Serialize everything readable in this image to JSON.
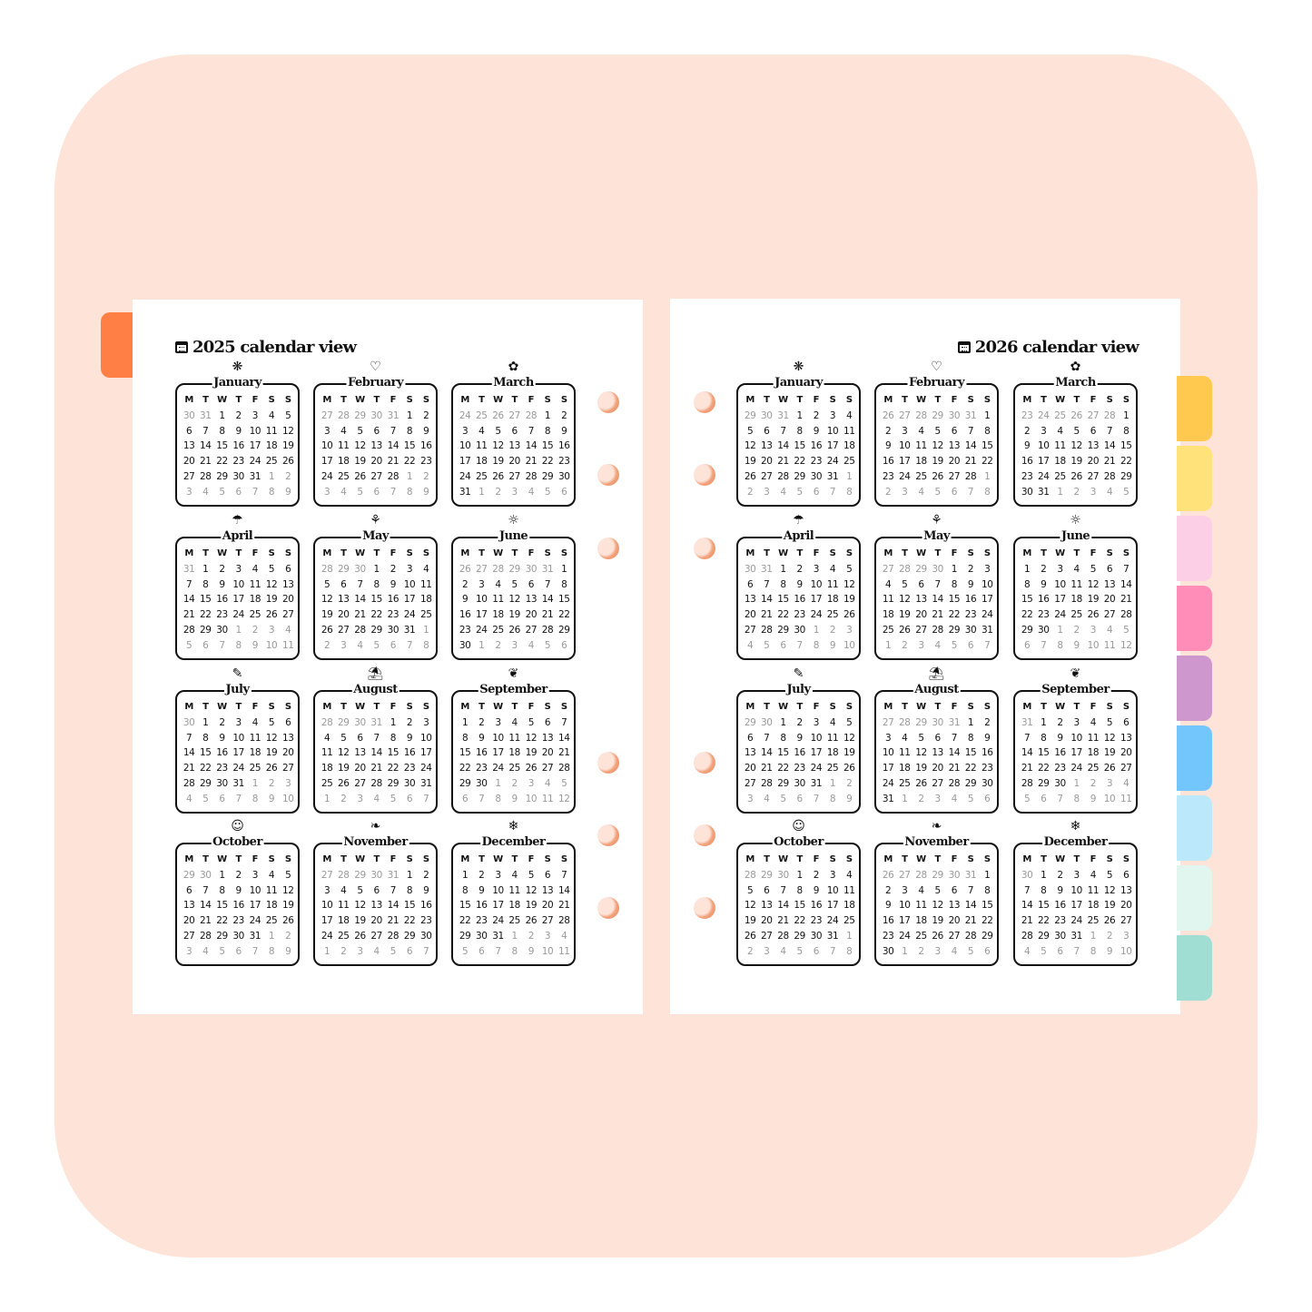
{
  "weekdays": [
    "M",
    "T",
    "W",
    "T",
    "F",
    "S",
    "S"
  ],
  "colors": {
    "background": "#FDE3D8",
    "left_tab": "#FF7F45",
    "side_tabs": [
      "#FFC84E",
      "#FFE27A",
      "#FCCFE6",
      "#FF8DB8",
      "#CE98CE",
      "#72C6FB",
      "#BCE8FC",
      "#E2F6F0",
      "#A0DED4"
    ]
  },
  "month_icons": [
    "firework-icon",
    "heart-hand-icon",
    "flower-icon",
    "umbrella-icon",
    "tulip-icon",
    "sun-icon",
    "popsicle-icon",
    "beach-umbrella-icon",
    "maple-leaf-icon",
    "pumpkin-icon",
    "leaf-icon",
    "snowflake-icon"
  ],
  "month_glyphs": [
    "❋",
    "♡",
    "✿",
    "☂",
    "⚘",
    "☼",
    "✎",
    "⛱",
    "❦",
    "☺",
    "❧",
    "❄"
  ],
  "pages": [
    {
      "title": "2025 calendar view",
      "months": [
        {
          "name": "January",
          "days": "30 31 1 2 3 4 5 6 7 8 9 10 11 12 13 14 15 16 17 18 19 20 21 22 23 24 25 26 27 28 29 30 31 1 2 3 4 5 6 7 8 9"
        },
        {
          "name": "February",
          "days": "27 28 29 30 31 1 2 3 4 5 6 7 8 9 10 11 12 13 14 15 16 17 18 19 20 21 22 23 24 25 26 27 28 1 2 3 4 5 6 7 8 9"
        },
        {
          "name": "March",
          "days": "24 25 26 27 28 1 2 3 4 5 6 7 8 9 10 11 12 13 14 15 16 17 18 19 20 21 22 23 24 25 26 27 28 29 30 31 1 2 3 4 5 6"
        },
        {
          "name": "April",
          "days": "31 1 2 3 4 5 6 7 8 9 10 11 12 13 14 15 16 17 18 19 20 21 22 23 24 25 26 27 28 29 30 1 2 3 4 5 6 7 8 9 10 11"
        },
        {
          "name": "May",
          "days": "28 29 30 1 2 3 4 5 6 7 8 9 10 11 12 13 14 15 16 17 18 19 20 21 22 23 24 25 26 27 28 29 30 31 1 2 3 4 5 6 7 8"
        },
        {
          "name": "June",
          "days": "26 27 28 29 30 31 1 2 3 4 5 6 7 8 9 10 11 12 13 14 15 16 17 18 19 20 21 22 23 24 25 26 27 28 29 30 1 2 3 4 5 6"
        },
        {
          "name": "July",
          "days": "30 1 2 3 4 5 6 7 8 9 10 11 12 13 14 15 16 17 18 19 20 21 22 23 24 25 26 27 28 29 30 31 1 2 3 4 5 6 7 8 9 10"
        },
        {
          "name": "August",
          "days": "28 29 30 31 1 2 3 4 5 6 7 8 9 10 11 12 13 14 15 16 17 18 19 20 21 22 23 24 25 26 27 28 29 30 31 1 2 3 4 5 6 7"
        },
        {
          "name": "September",
          "days": "1 2 3 4 5 6 7 8 9 10 11 12 13 14 15 16 17 18 19 20 21 22 23 24 25 26 27 28 29 30 1 2 3 4 5 6 7 8 9 10 11 12"
        },
        {
          "name": "October",
          "days": "29 30 1 2 3 4 5 6 7 8 9 10 11 12 13 14 15 16 17 18 19 20 21 22 23 24 25 26 27 28 29 30 31 1 2 3 4 5 6 7 8 9"
        },
        {
          "name": "November",
          "days": "27 28 29 30 31 1 2 3 4 5 6 7 8 9 10 11 12 13 14 15 16 17 18 19 20 21 22 23 24 25 26 27 28 29 30 1 2 3 4 5 6 7"
        },
        {
          "name": "December",
          "days": "1 2 3 4 5 6 7 8 9 10 11 12 13 14 15 16 17 18 19 20 21 22 23 24 25 26 27 28 29 30 31 1 2 3 4 5 6 7 8 9 10 11"
        }
      ]
    },
    {
      "title": "2026 calendar view",
      "months": [
        {
          "name": "January",
          "days": "29 30 31 1 2 3 4 5 6 7 8 9 10 11 12 13 14 15 16 17 18 19 20 21 22 23 24 25 26 27 28 29 30 31 1 2 3 4 5 6 7 8"
        },
        {
          "name": "February",
          "days": "26 27 28 29 30 31 1 2 3 4 5 6 7 8 9 10 11 12 13 14 15 16 17 18 19 20 21 22 23 24 25 26 27 28 1 2 3 4 5 6 7 8"
        },
        {
          "name": "March",
          "days": "23 24 25 26 27 28 1 2 3 4 5 6 7 8 9 10 11 12 13 14 15 16 17 18 19 20 21 22 23 24 25 26 27 28 29 30 31 1 2 3 4 5"
        },
        {
          "name": "April",
          "days": "30 31 1 2 3 4 5 6 7 8 9 10 11 12 13 14 15 16 17 18 19 20 21 22 23 24 25 26 27 28 29 30 1 2 3 4 5 6 7 8 9 10"
        },
        {
          "name": "May",
          "days": "27 28 29 30 1 2 3 4 5 6 7 8 9 10 11 12 13 14 15 16 17 18 19 20 21 22 23 24 25 26 27 28 29 30 31 1 2 3 4 5 6 7"
        },
        {
          "name": "June",
          "days": "1 2 3 4 5 6 7 8 9 10 11 12 13 14 15 16 17 18 19 20 21 22 23 24 25 26 27 28 29 30 1 2 3 4 5 6 7 8 9 10 11 12"
        },
        {
          "name": "July",
          "days": "29 30 1 2 3 4 5 6 7 8 9 10 11 12 13 14 15 16 17 18 19 20 21 22 23 24 25 26 27 28 29 30 31 1 2 3 4 5 6 7 8 9"
        },
        {
          "name": "August",
          "days": "27 28 29 30 31 1 2 3 4 5 6 7 8 9 10 11 12 13 14 15 16 17 18 19 20 21 22 23 24 25 26 27 28 29 30 31 1 2 3 4 5 6"
        },
        {
          "name": "September",
          "days": "31 1 2 3 4 5 6 7 8 9 10 11 12 13 14 15 16 17 18 19 20 21 22 23 24 25 26 27 28 29 30 1 2 3 4 5 6 7 8 9 10 11"
        },
        {
          "name": "October",
          "days": "28 29 30 1 2 3 4 5 6 7 8 9 10 11 12 13 14 15 16 17 18 19 20 21 22 23 24 25 26 27 28 29 30 31 1 2 3 4 5 6 7 8"
        },
        {
          "name": "November",
          "days": "26 27 28 29 30 31 1 2 3 4 5 6 7 8 9 10 11 12 13 14 15 16 17 18 19 20 21 22 23 24 25 26 27 28 29 30 1 2 3 4 5 6"
        },
        {
          "name": "December",
          "days": "30 1 2 3 4 5 6 7 8 9 10 11 12 13 14 15 16 17 18 19 20 21 22 23 24 25 26 27 28 29 30 31 1 2 3 4 5 6 7 8 9 10"
        }
      ]
    }
  ]
}
